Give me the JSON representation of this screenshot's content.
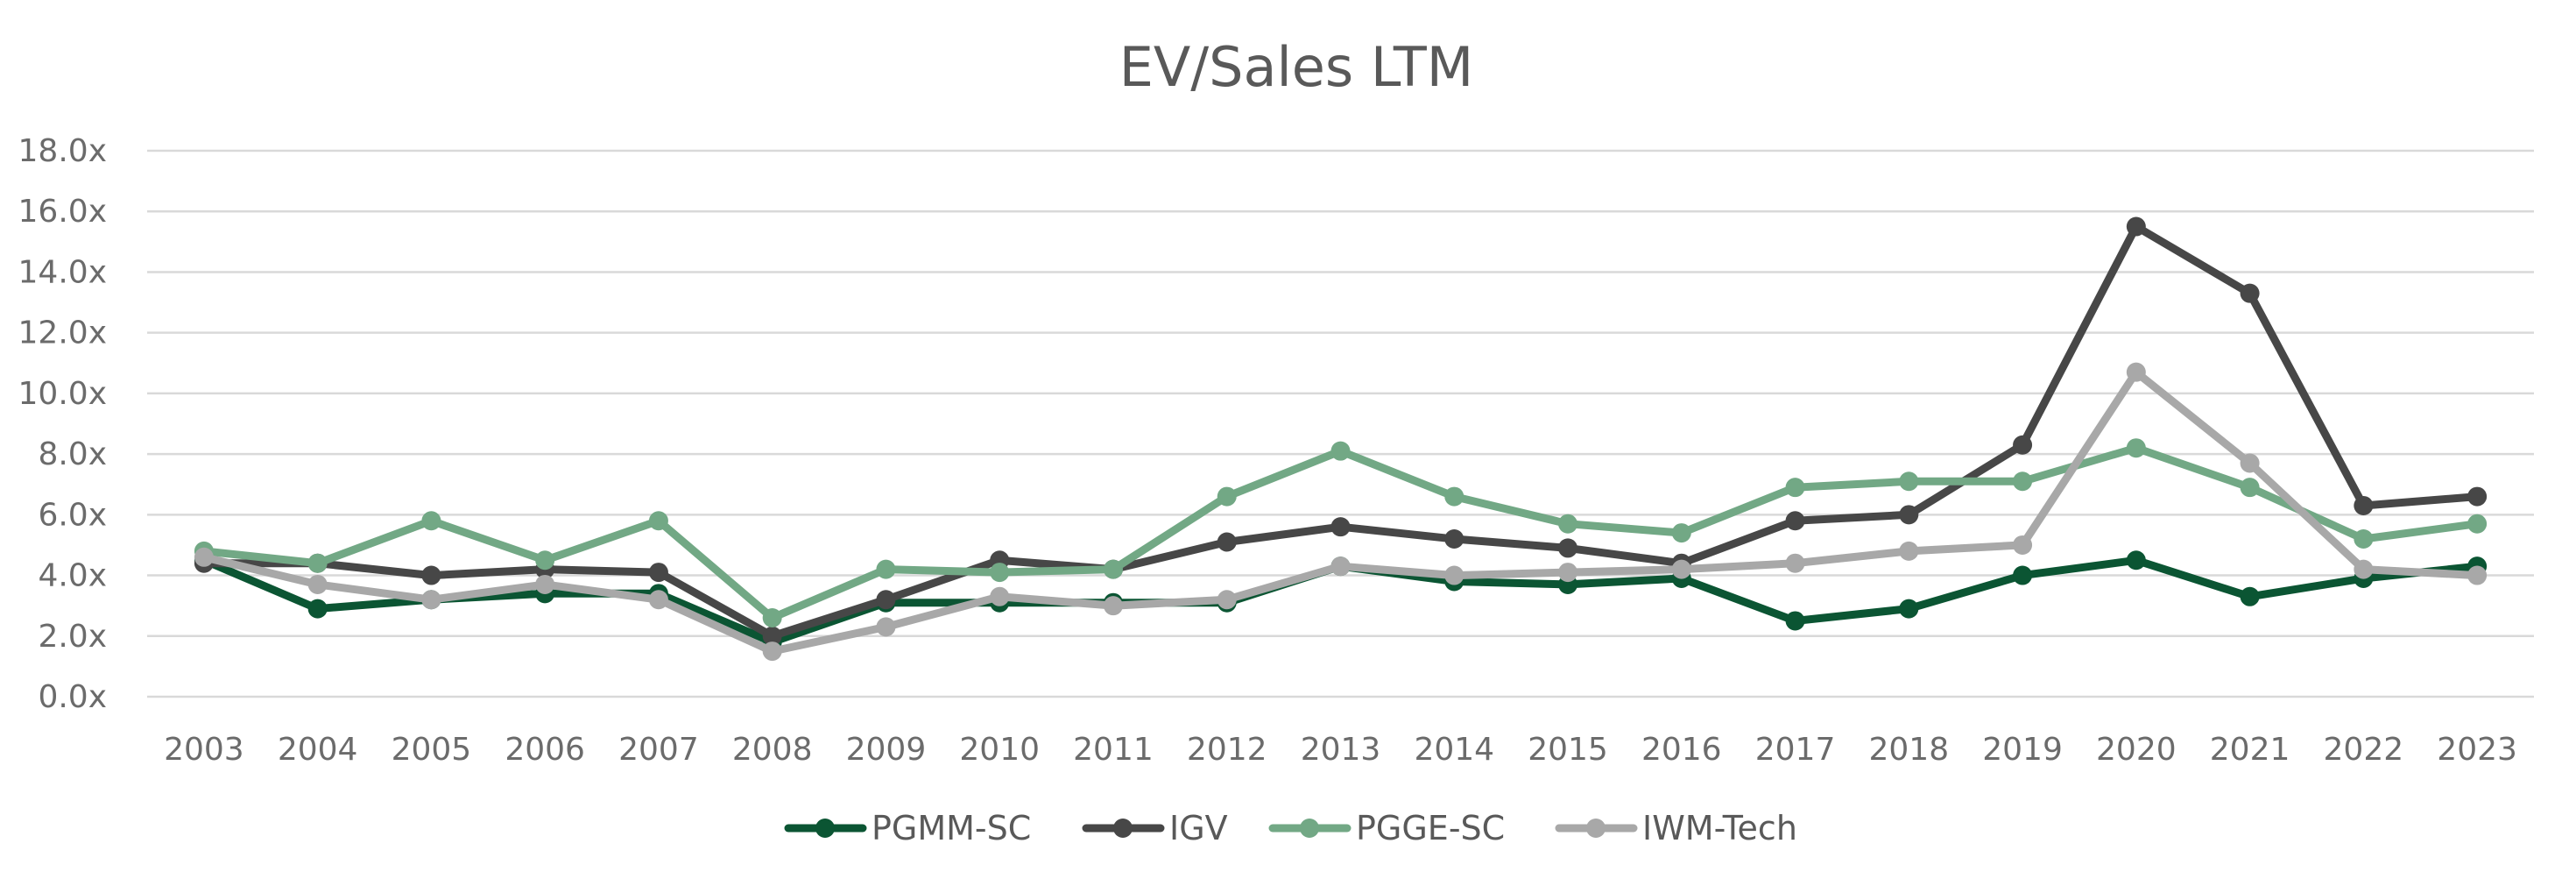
{
  "chart_data": {
    "type": "line",
    "title": "EV/Sales LTM",
    "xlabel": "",
    "ylabel": "",
    "categories": [
      "2003",
      "2004",
      "2005",
      "2006",
      "2007",
      "2008",
      "2009",
      "2010",
      "2011",
      "2012",
      "2013",
      "2014",
      "2015",
      "2016",
      "2017",
      "2018",
      "2019",
      "2020",
      "2021",
      "2022",
      "2023"
    ],
    "ylim": [
      0,
      18
    ],
    "y_ticks": [
      "0.0x",
      "2.0x",
      "4.0x",
      "6.0x",
      "8.0x",
      "10.0x",
      "12.0x",
      "14.0x",
      "16.0x",
      "18.0x"
    ],
    "grid": true,
    "legend_position": "bottom",
    "series": [
      {
        "name": "PGMM-SC",
        "color": "#0b5533",
        "values": [
          4.5,
          2.9,
          3.2,
          3.4,
          3.4,
          1.8,
          3.1,
          3.1,
          3.1,
          3.1,
          4.3,
          3.8,
          3.7,
          3.9,
          2.5,
          2.9,
          4.0,
          4.5,
          3.3,
          3.9,
          4.3
        ]
      },
      {
        "name": "IGV",
        "color": "#474747",
        "values": [
          4.4,
          4.4,
          4.0,
          4.2,
          4.1,
          2.0,
          3.2,
          4.5,
          4.2,
          5.1,
          5.6,
          5.2,
          4.9,
          4.4,
          5.8,
          6.0,
          8.3,
          15.5,
          13.3,
          6.3,
          6.6
        ]
      },
      {
        "name": "PGGE-SC",
        "color": "#72a885",
        "values": [
          4.8,
          4.4,
          5.8,
          4.5,
          5.8,
          2.6,
          4.2,
          4.1,
          4.2,
          6.6,
          8.1,
          6.6,
          5.7,
          5.4,
          6.9,
          7.1,
          7.1,
          8.2,
          6.9,
          5.2,
          5.7
        ]
      },
      {
        "name": "IWM-Tech",
        "color": "#a8a8a8",
        "values": [
          4.6,
          3.7,
          3.2,
          3.7,
          3.2,
          1.5,
          2.3,
          3.3,
          3.0,
          3.2,
          4.3,
          4.0,
          4.1,
          4.2,
          4.4,
          4.8,
          5.0,
          10.7,
          7.7,
          4.2,
          4.0
        ]
      }
    ]
  }
}
